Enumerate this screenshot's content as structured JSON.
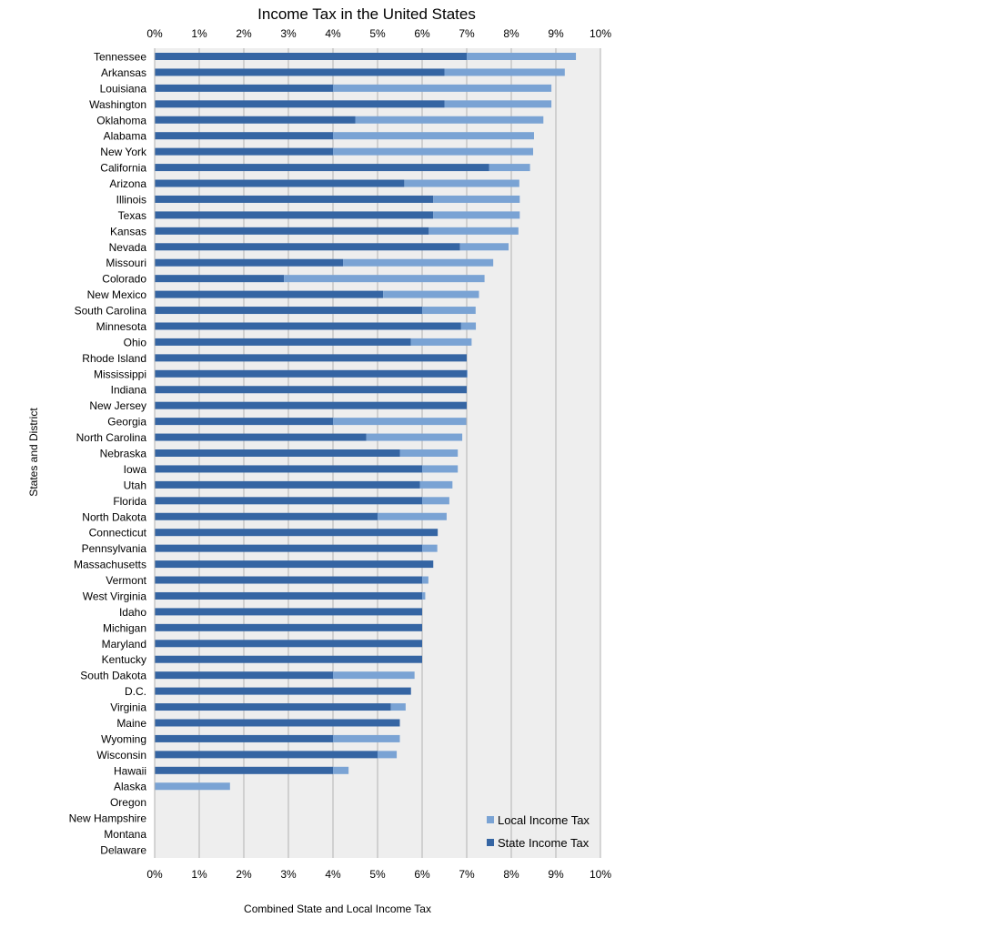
{
  "chart_data": {
    "type": "bar",
    "orientation": "horizontal",
    "stacked": true,
    "title": "Income Tax in the United States",
    "xlabel": "Combined State and Local Income Tax",
    "ylabel": "States and District",
    "xlim": [
      0,
      10
    ],
    "x_ticks": [
      "0%",
      "1%",
      "2%",
      "3%",
      "4%",
      "5%",
      "6%",
      "7%",
      "8%",
      "9%",
      "10%"
    ],
    "grid": true,
    "legend_position": "bottom-right",
    "categories": [
      "Tennessee",
      "Arkansas",
      "Louisiana",
      "Washington",
      "Oklahoma",
      "Alabama",
      "New York",
      "California",
      "Arizona",
      "Illinois",
      "Texas",
      "Kansas",
      "Nevada",
      "Missouri",
      "Colorado",
      "New Mexico",
      "South Carolina",
      "Minnesota",
      "Ohio",
      "Rhode Island",
      "Mississippi",
      "Indiana",
      "New Jersey",
      "Georgia",
      "North Carolina",
      "Nebraska",
      "Iowa",
      "Utah",
      "Florida",
      "North Dakota",
      "Connecticut",
      "Pennsylvania",
      "Massachusetts",
      "Vermont",
      "West Virginia",
      "Idaho",
      "Michigan",
      "Maryland",
      "Kentucky",
      "South Dakota",
      "D.C.",
      "Virginia",
      "Maine",
      "Wyoming",
      "Wisconsin",
      "Hawaii",
      "Alaska",
      "Oregon",
      "New Hampshire",
      "Montana",
      "Delaware"
    ],
    "series": [
      {
        "name": "State Income Tax",
        "color": "#3565a3",
        "values": [
          7.0,
          6.5,
          4.0,
          6.5,
          4.5,
          4.0,
          4.0,
          7.5,
          5.6,
          6.25,
          6.25,
          6.15,
          6.85,
          4.225,
          2.9,
          5.125,
          6.0,
          6.875,
          5.75,
          7.0,
          7.0,
          7.0,
          7.0,
          4.0,
          4.75,
          5.5,
          6.0,
          5.95,
          6.0,
          5.0,
          6.35,
          6.0,
          6.25,
          6.0,
          6.0,
          6.0,
          6.0,
          6.0,
          6.0,
          4.0,
          5.75,
          5.3,
          5.5,
          4.0,
          5.0,
          4.0,
          0,
          0,
          0,
          0,
          0
        ]
      },
      {
        "name": "Local Income Tax",
        "color": "#7aa3d4",
        "values": [
          2.45,
          2.7,
          4.9,
          2.4,
          4.22,
          4.51,
          4.49,
          0.92,
          2.58,
          1.94,
          1.94,
          2.01,
          1.09,
          3.37,
          4.5,
          2.15,
          1.2,
          0.33,
          1.36,
          0,
          0.02,
          0,
          0,
          2.99,
          2.15,
          1.3,
          0.8,
          0.73,
          0.61,
          1.55,
          0,
          0.34,
          0,
          0.14,
          0.07,
          0,
          0,
          0,
          0,
          1.83,
          0,
          0.33,
          0,
          1.5,
          0.43,
          0.35,
          1.69,
          0,
          0,
          0,
          0
        ]
      }
    ]
  }
}
